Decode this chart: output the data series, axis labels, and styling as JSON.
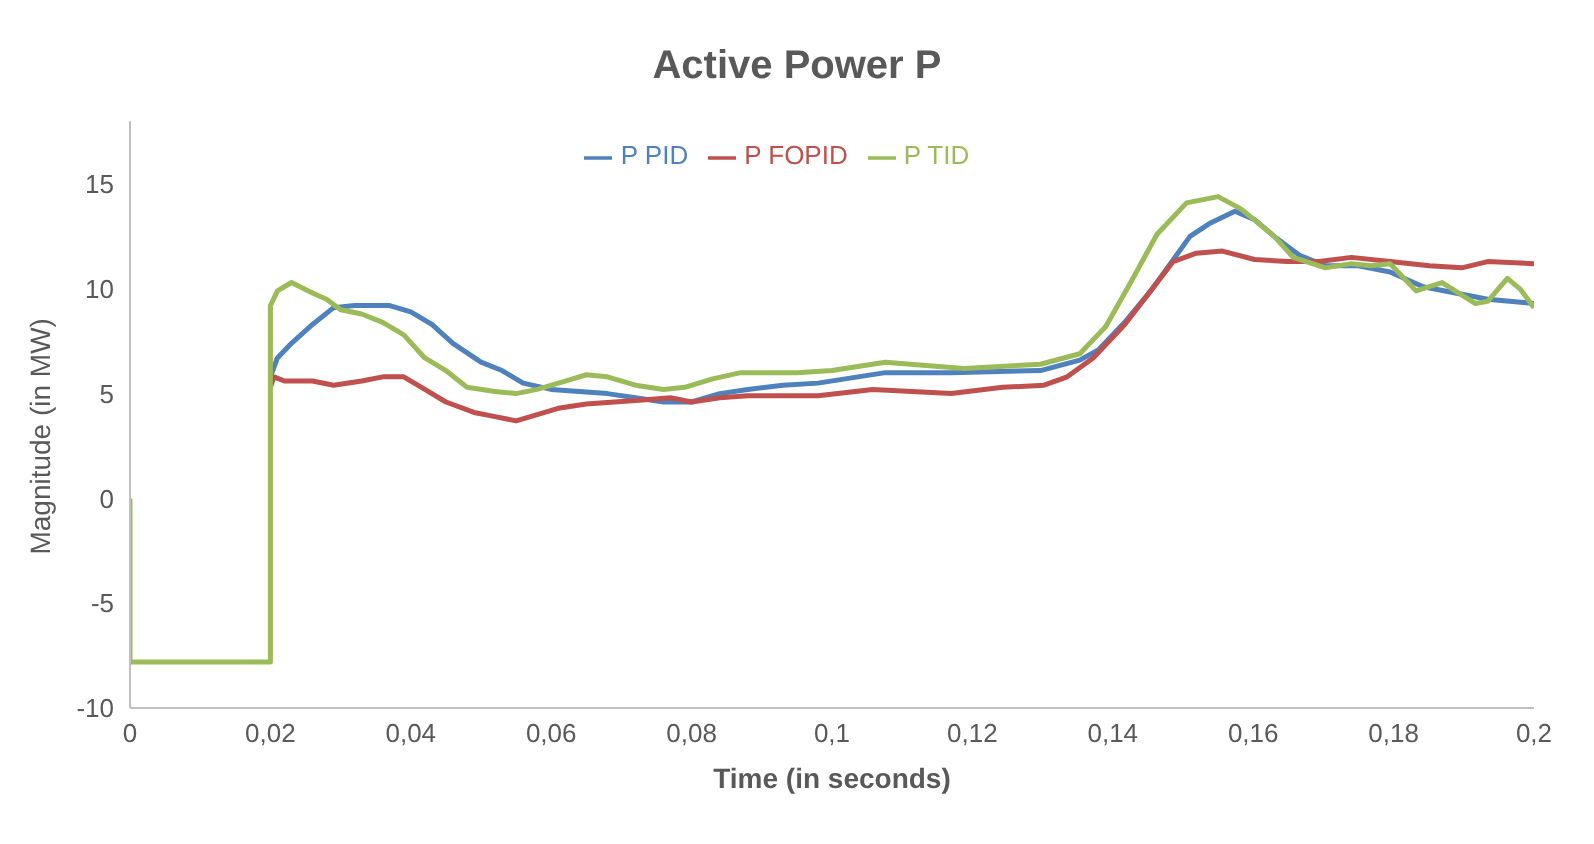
{
  "chart_data": {
    "type": "line",
    "title": "Active Power P",
    "xlabel": "Time (in seconds)",
    "ylabel": "Magnitude (in MW)",
    "xlim": [
      0,
      0.2
    ],
    "xticks": [
      0,
      {
        "value": 0.02,
        "label": "0,02"
      },
      {
        "value": 0.04,
        "label": "0,04"
      },
      {
        "value": 0.06,
        "label": "0,06"
      },
      {
        "value": 0.08,
        "label": "0,08"
      },
      {
        "value": 0.1,
        "label": "0,1"
      },
      {
        "value": 0.12,
        "label": "0,12"
      },
      {
        "value": 0.14,
        "label": "0,14"
      },
      {
        "value": 0.16,
        "label": "0,16"
      },
      {
        "value": 0.18,
        "label": "0,18"
      },
      {
        "value": 0.2,
        "label": "0,2"
      }
    ],
    "ylim": [
      -10,
      18
    ],
    "yticks": [
      -10,
      -5,
      0,
      5,
      10,
      15
    ],
    "grid": false,
    "legend": "top",
    "marker": "none",
    "line_style": "solid",
    "series": [
      {
        "name": "P PID",
        "color": "#4f81bd",
        "x": [
          0.02,
          0.021,
          0.023,
          0.026,
          0.029,
          0.032,
          0.037,
          0.04,
          0.043,
          0.046,
          0.05,
          0.053,
          0.056,
          0.06,
          0.064,
          0.068,
          0.072,
          0.076,
          0.08,
          0.084,
          0.088,
          0.093,
          0.098,
          0.1076,
          0.117,
          0.1297,
          0.1353,
          0.138,
          0.1417,
          0.1454,
          0.1482,
          0.151,
          0.1537,
          0.1574,
          0.1602,
          0.163,
          0.1666,
          0.1703,
          0.175,
          0.1795,
          0.1842,
          0.1888,
          0.1934,
          0.2
        ],
        "values": [
          5.8,
          6.7,
          7.4,
          8.3,
          9.1,
          9.2,
          9.2,
          8.9,
          8.3,
          7.4,
          6.5,
          6.1,
          5.5,
          5.2,
          5.1,
          5.0,
          4.8,
          4.6,
          4.6,
          5.0,
          5.2,
          5.4,
          5.5,
          6.0,
          6.0,
          6.1,
          6.6,
          7.1,
          8.4,
          9.9,
          11.2,
          12.5,
          13.1,
          13.7,
          13.3,
          12.5,
          11.6,
          11.1,
          11.1,
          10.8,
          10.1,
          9.8,
          9.5,
          9.3
        ]
      },
      {
        "name": "P FOPID",
        "color": "#c0504d",
        "x": [
          0.02,
          0.0205,
          0.022,
          0.026,
          0.029,
          0.033,
          0.036,
          0.039,
          0.042,
          0.045,
          0.049,
          0.052,
          0.055,
          0.058,
          0.061,
          0.065,
          0.069,
          0.073,
          0.077,
          0.08,
          0.084,
          0.088,
          0.093,
          0.098,
          0.1058,
          0.117,
          0.1243,
          0.1302,
          0.1335,
          0.1372,
          0.1417,
          0.1454,
          0.1486,
          0.1519,
          0.1556,
          0.1602,
          0.1648,
          0.1694,
          0.174,
          0.1795,
          0.1851,
          0.1897,
          0.1934,
          0.2
        ],
        "values": [
          5.3,
          5.8,
          5.6,
          5.6,
          5.4,
          5.6,
          5.8,
          5.8,
          5.2,
          4.6,
          4.1,
          3.9,
          3.7,
          4.0,
          4.3,
          4.5,
          4.6,
          4.7,
          4.8,
          4.6,
          4.8,
          4.9,
          4.9,
          4.9,
          5.2,
          5.0,
          5.3,
          5.4,
          5.8,
          6.7,
          8.3,
          9.9,
          11.3,
          11.7,
          11.8,
          11.4,
          11.3,
          11.3,
          11.5,
          11.3,
          11.1,
          11.0,
          11.3,
          11.2
        ]
      },
      {
        "name": "P TID",
        "color": "#9bbb59",
        "x": [
          0,
          0,
          0.02,
          0.02,
          0.021,
          0.023,
          0.026,
          0.028,
          0.03,
          0.033,
          0.036,
          0.039,
          0.042,
          0.045,
          0.048,
          0.052,
          0.055,
          0.058,
          0.062,
          0.065,
          0.068,
          0.072,
          0.076,
          0.079,
          0.083,
          0.087,
          0.091,
          0.095,
          0.1,
          0.1076,
          0.1188,
          0.1297,
          0.1353,
          0.139,
          0.1427,
          0.1463,
          0.1505,
          0.155,
          0.1583,
          0.163,
          0.1657,
          0.1703,
          0.174,
          0.1768,
          0.1795,
          0.1832,
          0.1869,
          0.1916,
          0.1934,
          0.1962,
          0.198,
          0.2
        ],
        "values": [
          0,
          -7.8,
          -7.8,
          9.2,
          9.9,
          10.3,
          9.8,
          9.5,
          9.0,
          8.8,
          8.4,
          7.8,
          6.7,
          6.1,
          5.3,
          5.1,
          5.0,
          5.2,
          5.6,
          5.9,
          5.8,
          5.4,
          5.2,
          5.3,
          5.7,
          6.0,
          6.0,
          6.0,
          6.1,
          6.5,
          6.2,
          6.4,
          6.9,
          8.2,
          10.4,
          12.6,
          14.1,
          14.4,
          13.8,
          12.5,
          11.5,
          11.0,
          11.2,
          11.1,
          11.2,
          9.9,
          10.3,
          9.3,
          9.4,
          10.5,
          10.0,
          9.1
        ]
      }
    ]
  }
}
